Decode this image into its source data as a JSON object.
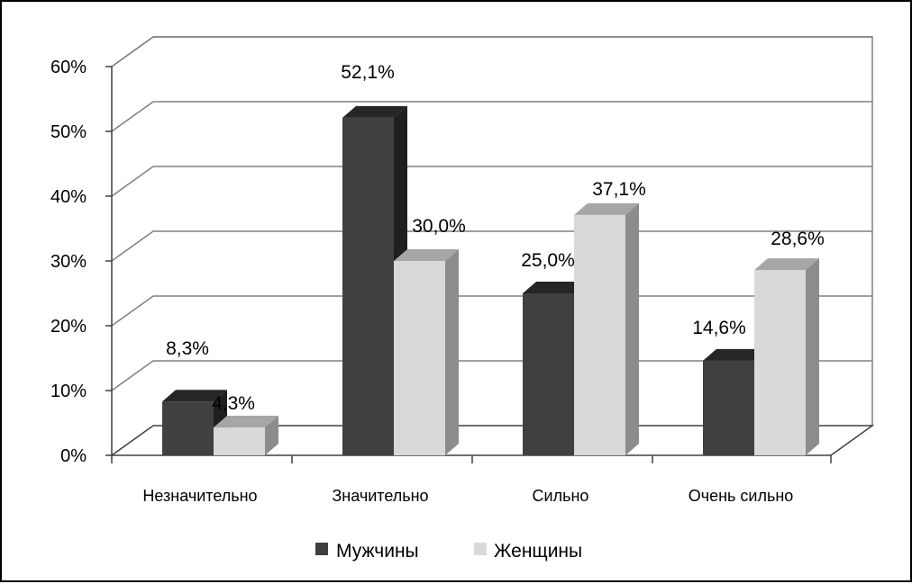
{
  "chart_data": {
    "type": "bar",
    "categories": [
      "Незначительно",
      "Значительно",
      "Сильно",
      "Очень сильно"
    ],
    "series": [
      {
        "name": "Мужчины",
        "values": [
          8.3,
          52.1,
          25.0,
          14.6
        ],
        "labels": [
          "8,3%",
          "52,1%",
          "25,0%",
          "14,6%"
        ],
        "color": "#404040"
      },
      {
        "name": "Женщины",
        "values": [
          4.3,
          30.0,
          37.1,
          28.6
        ],
        "labels": [
          "4,3%",
          "30,0%",
          "37,1%",
          "28,6%"
        ],
        "color": "#d9d9d9"
      }
    ],
    "ylim": [
      0,
      60
    ],
    "ytick_labels": [
      "0%",
      "10%",
      "20%",
      "30%",
      "40%",
      "50%",
      "60%"
    ],
    "grid": true,
    "legend": "bottom",
    "three_d": true
  }
}
